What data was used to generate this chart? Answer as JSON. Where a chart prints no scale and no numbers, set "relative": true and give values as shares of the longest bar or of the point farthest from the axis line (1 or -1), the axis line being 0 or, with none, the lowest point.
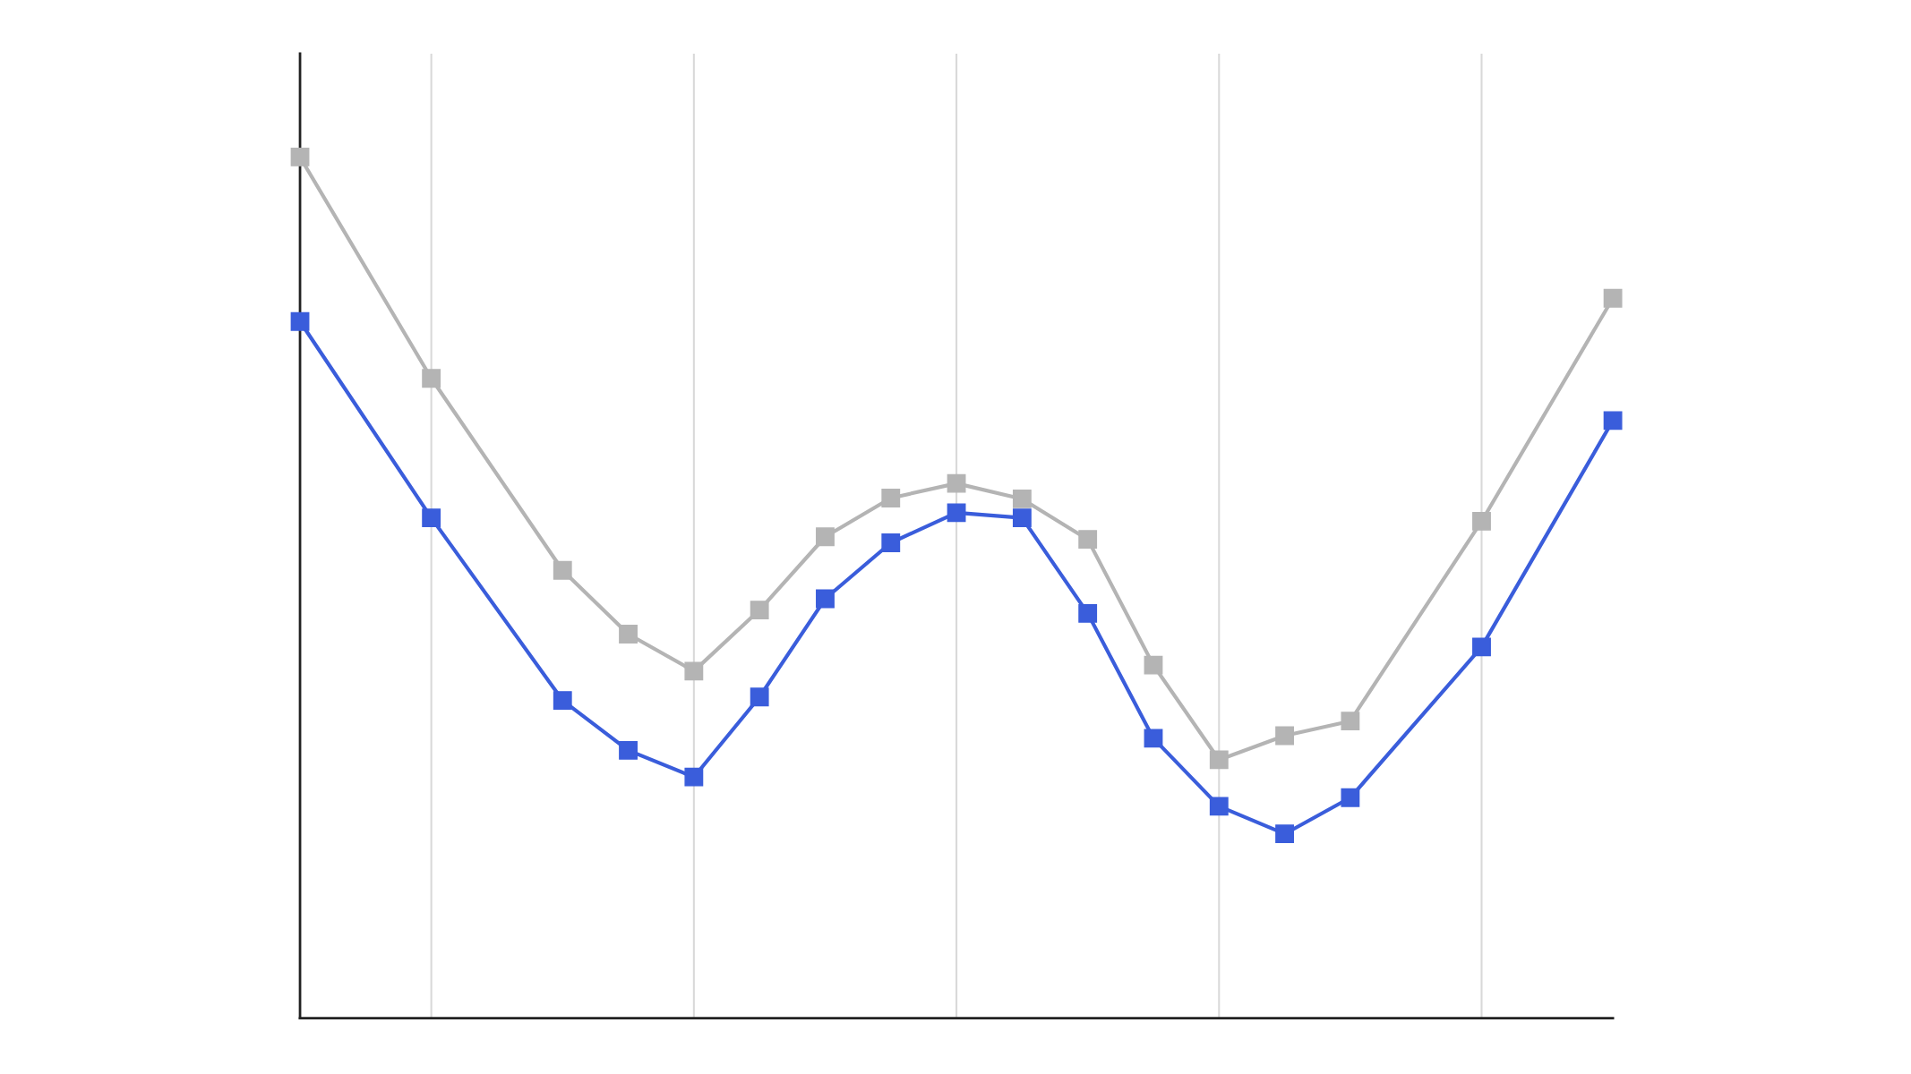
{
  "chart_data": {
    "type": "line",
    "relative": true,
    "marker": "square",
    "line_style": "solid",
    "grid": "x",
    "legend": false,
    "categories": [
      null,
      null,
      null,
      null,
      null,
      null,
      null,
      null,
      null,
      null,
      null,
      null,
      null,
      null,
      null,
      null,
      null,
      null,
      null,
      null,
      null
    ],
    "series": [
      {
        "color": "#b4b4b4",
        "values": [
          1.0,
          null,
          0.743,
          null,
          0.52,
          0.446,
          0.403,
          0.474,
          0.559,
          0.604,
          0.621,
          0.603,
          0.556,
          0.41,
          0.3,
          0.328,
          0.345,
          null,
          0.577,
          null,
          0.836
        ]
      },
      {
        "color": "#3a5ddb",
        "values": [
          0.809,
          null,
          0.581,
          null,
          0.369,
          0.311,
          0.28,
          0.373,
          0.487,
          0.552,
          0.587,
          0.581,
          0.47,
          0.325,
          0.246,
          0.214,
          0.256,
          null,
          0.431,
          null,
          0.694
        ]
      }
    ]
  }
}
